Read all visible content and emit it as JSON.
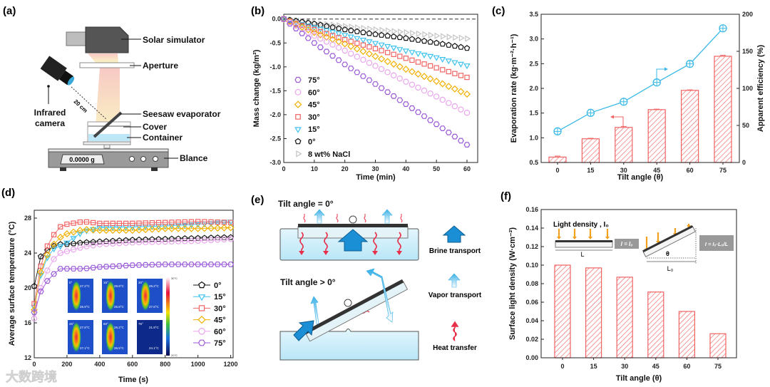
{
  "panel_labels": {
    "a": "(a)",
    "b": "(b)",
    "c": "(c)",
    "d": "(d)",
    "e": "(e)",
    "f": "(f)"
  },
  "watermark": "大数跨境",
  "setup": {
    "solar_simulator": "Solar simulator",
    "aperture": "Aperture",
    "seesaw_evaporator": "Seesaw evaporator",
    "cover": "Cover",
    "container": "Container",
    "balance": "Blance",
    "infrared_camera_1": "Infrared",
    "infrared_camera_2": "camera",
    "distance": "20 cm",
    "balance_reading": "0.0000 g"
  },
  "mechanism": {
    "tilt_zero": "Tilt angle = 0°",
    "tilt_positive": "Tilt angle > 0°",
    "brine": "Brine transport",
    "vapor": "Vapor transport",
    "heat": "Heat transfer"
  },
  "chart_data": [
    {
      "id": "b",
      "type": "scatter",
      "xlabel": "Time (min)",
      "ylabel": "Mass change (kg/m²)",
      "xlim": [
        0,
        63.5
      ],
      "ylim": [
        -3.0,
        0.1
      ],
      "xticks": [
        0,
        10,
        20,
        30,
        40,
        50,
        60
      ],
      "yticks": [
        "0.0",
        "-0.5",
        "-1.0",
        "-1.5",
        "-2.0",
        "-2.5",
        "-3.0"
      ],
      "reference_line_y": 0,
      "legend_position": "bottom-left",
      "x": [
        0,
        10,
        20,
        30,
        40,
        50,
        60
      ],
      "marker_interval": 2,
      "series": [
        {
          "name": "75°",
          "marker": "hexagon",
          "color": "#9a5ad8",
          "values": [
            0,
            -0.5,
            -0.95,
            -1.36,
            -1.78,
            -2.2,
            -2.63
          ]
        },
        {
          "name": "60°",
          "marker": "circle",
          "color": "#e8a6ec",
          "values": [
            0,
            -0.35,
            -0.66,
            -0.98,
            -1.31,
            -1.62,
            -1.96
          ]
        },
        {
          "name": "45°",
          "marker": "diamond",
          "color": "#f0b000",
          "values": [
            0,
            -0.28,
            -0.52,
            -0.78,
            -1.05,
            -1.3,
            -1.57
          ]
        },
        {
          "name": "30°",
          "marker": "square",
          "color": "#f06464",
          "values": [
            0,
            -0.22,
            -0.43,
            -0.62,
            -0.82,
            -1.02,
            -1.22
          ]
        },
        {
          "name": "15°",
          "marker": "tri-down",
          "color": "#3ec2ee",
          "values": [
            0,
            -0.17,
            -0.33,
            -0.5,
            -0.66,
            -0.8,
            -0.97
          ]
        },
        {
          "name": "0°",
          "marker": "pentagon",
          "color": "#111111",
          "values": [
            0,
            -0.1,
            -0.22,
            -0.32,
            -0.4,
            -0.5,
            -0.61
          ]
        },
        {
          "name": "8 wt% NaCl",
          "marker": "tri-right",
          "color": "#c4c4c4",
          "values": [
            0,
            -0.08,
            -0.15,
            -0.22,
            -0.28,
            -0.35,
            -0.41
          ]
        }
      ]
    },
    {
      "id": "c",
      "type": "bar",
      "xlabel": "Tilt angle (θ)",
      "ylabel": "Evaporation rate (kg·m⁻²·h⁻¹)",
      "y2label": "Apparent efficiency (%)",
      "categories": [
        "0",
        "15",
        "30",
        "45",
        "60",
        "75"
      ],
      "ylim": [
        0.5,
        3.5
      ],
      "yticks": [
        "0.5",
        "1.0",
        "1.5",
        "2.0",
        "2.5",
        "3.0",
        "3.5"
      ],
      "y2lim": [
        0,
        200
      ],
      "y2ticks": [
        "0",
        "50",
        "100",
        "150",
        "200"
      ],
      "series": [
        {
          "name": "Evaporation rate",
          "axis": "left",
          "color": "#f06464",
          "values": [
            0.61,
            0.98,
            1.21,
            1.57,
            1.96,
            2.65
          ],
          "errors": [
            0.02,
            0.01,
            0.02,
            0.01,
            0.01,
            0.02
          ]
        },
        {
          "name": "Apparent efficiency",
          "axis": "right",
          "type": "line",
          "color": "#3ab9e8",
          "values": [
            42,
            67,
            82,
            108,
            133,
            181
          ]
        }
      ]
    },
    {
      "id": "d",
      "type": "line",
      "xlabel": "Time (s)",
      "ylabel": "Average surface temperature (°C)",
      "xlim": [
        0,
        1215
      ],
      "ylim": [
        12,
        28.9
      ],
      "xticks": [
        0,
        200,
        400,
        600,
        800,
        1000,
        1200
      ],
      "yticks": [
        12,
        16,
        20,
        24,
        28
      ],
      "legend_position": "bottom-right",
      "x": [
        0,
        20,
        40,
        80,
        120,
        160,
        200,
        300,
        400,
        600,
        800,
        1000,
        1200
      ],
      "marker_interval": 40,
      "series": [
        {
          "name": "0°",
          "marker": "pentagon",
          "color": "#111111",
          "values": [
            20.2,
            21.7,
            23.6,
            24.3,
            24.8,
            25.0,
            25.0,
            25.2,
            25.3,
            25.5,
            25.6,
            25.7,
            25.8
          ]
        },
        {
          "name": "15°",
          "marker": "tri-down",
          "color": "#3ec2ee",
          "values": [
            17.8,
            19.5,
            21.5,
            23.5,
            24.5,
            24.8,
            25.2,
            26.5,
            26.9,
            27.0,
            27.1,
            27.3,
            27.6
          ]
        },
        {
          "name": "30°",
          "marker": "square",
          "color": "#f06464",
          "values": [
            18.2,
            20.4,
            22.5,
            24.8,
            26.1,
            27.0,
            27.3,
            27.6,
            27.4,
            27.4,
            27.5,
            27.6,
            27.5
          ]
        },
        {
          "name": "45°",
          "marker": "diamond",
          "color": "#f0b000",
          "values": [
            17.5,
            19.5,
            21.8,
            23.8,
            25.0,
            25.8,
            26.2,
            26.7,
            26.6,
            26.6,
            26.8,
            26.8,
            26.9
          ]
        },
        {
          "name": "60°",
          "marker": "circle",
          "color": "#e8a6ec",
          "values": [
            16.5,
            18.0,
            20.0,
            22.0,
            23.3,
            24.0,
            24.2,
            24.7,
            25.0,
            25.2,
            25.3,
            25.4,
            25.6
          ]
        },
        {
          "name": "75°",
          "marker": "hexagon",
          "color": "#9a5ad8",
          "values": [
            17.2,
            18.5,
            19.6,
            20.8,
            21.6,
            22.2,
            22.2,
            22.2,
            22.4,
            22.6,
            22.7,
            22.7,
            22.7
          ]
        }
      ],
      "inset": {
        "colorbar_max": "30°C",
        "colorbar_min": "20°C",
        "images": [
          {
            "angle": "0°",
            "max": "27.2°C",
            "min": "26.9°C"
          },
          {
            "angle": "15°",
            "max": "29.8°C",
            "min": "26.8°C"
          },
          {
            "angle": "30°",
            "max": "29.2°C",
            "min": "27.6°C"
          },
          {
            "angle": "45°",
            "max": "27.8°C",
            "min": "27.1°C"
          },
          {
            "angle": "60°",
            "max": "26.2°C",
            "min": "26.5°C"
          },
          {
            "angle": "75°",
            "max": "21.9°C",
            "min": "24.1°C"
          }
        ]
      }
    },
    {
      "id": "f",
      "type": "bar",
      "xlabel": "Tilt angle (θ)",
      "ylabel": "Surface light density (W·cm⁻²)",
      "categories": [
        "0",
        "15",
        "30",
        "45",
        "60",
        "75"
      ],
      "ylim": [
        0,
        0.16
      ],
      "yticks": [
        "0.00",
        "0.02",
        "0.04",
        "0.06",
        "0.08",
        "0.10",
        "0.12",
        "0.14",
        "0.16"
      ],
      "series": [
        {
          "name": "Surface light density",
          "color": "#f06464",
          "values": [
            0.1,
            0.097,
            0.087,
            0.071,
            0.05,
            0.026
          ]
        }
      ],
      "inset": {
        "title": "Light density , I₀",
        "flat_formula": "I = I₀",
        "tilt_formula": "I = I₀·L₀/L",
        "length_flat": "L",
        "length_proj": "L₀",
        "angle": "θ"
      }
    }
  ]
}
